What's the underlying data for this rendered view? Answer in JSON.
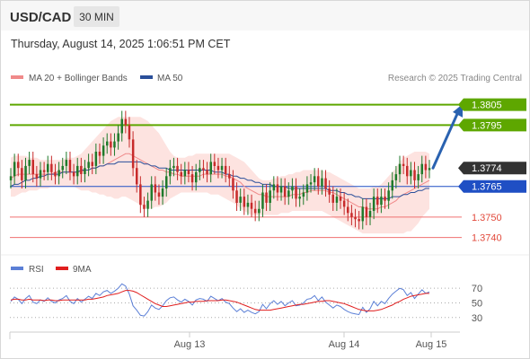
{
  "header": {
    "symbol": "USD/CAD",
    "timeframe": "30 MIN",
    "datetime": "Thursday, August 14, 2025 1:06:51 PM CET"
  },
  "legend": {
    "items": [
      {
        "label": "MA 20 + Bollinger Bands",
        "color": "#f08a8a"
      },
      {
        "label": "MA 50",
        "color": "#2a4f9a"
      }
    ],
    "credit": "Research © 2025 Trading Central"
  },
  "rsi_legend": {
    "items": [
      {
        "label": "RSI",
        "color": "#5b7fd6"
      },
      {
        "label": "9MA",
        "color": "#e01e1e"
      }
    ]
  },
  "colors": {
    "resistance": "#5ea700",
    "pivot": "#1f4fc4",
    "support": "#f07070",
    "candle_up": "#1f7a2b",
    "candle_down": "#c72b2b",
    "band_fill": "#fde3e0",
    "arrow": "#2a62b0",
    "last_price_bg": "#333333"
  },
  "chart_data": [
    {
      "type": "candlestick",
      "title": "USD/CAD 30 MIN",
      "x_ticks": [
        "Aug 13",
        "Aug 14",
        "Aug 15"
      ],
      "ylim": [
        1.3735,
        1.3811
      ],
      "levels": [
        {
          "value": 1.3805,
          "label": "1.3805",
          "kind": "resistance"
        },
        {
          "value": 1.3795,
          "label": "1.3795",
          "kind": "resistance"
        },
        {
          "value": 1.3765,
          "label": "1.3765",
          "kind": "pivot"
        },
        {
          "value": 1.375,
          "label": "1.3750",
          "kind": "support"
        },
        {
          "value": 1.374,
          "label": "1.3740",
          "kind": "support"
        }
      ],
      "last_price": {
        "value": 1.3774,
        "label": "1.3774"
      },
      "projection": {
        "from": 1.3774,
        "to": 1.3804
      },
      "close": [
        1.377,
        1.3777,
        1.3774,
        1.3768,
        1.3775,
        1.3778,
        1.3771,
        1.3769,
        1.3773,
        1.3772,
        1.3776,
        1.3772,
        1.377,
        1.3773,
        1.3775,
        1.3778,
        1.3772,
        1.377,
        1.3775,
        1.3771,
        1.3774,
        1.3777,
        1.3775,
        1.3782,
        1.378,
        1.3785,
        1.3787,
        1.3784,
        1.3787,
        1.3791,
        1.3798,
        1.3795,
        1.3788,
        1.3774,
        1.3766,
        1.3756,
        1.3754,
        1.3758,
        1.3766,
        1.3762,
        1.376,
        1.3764,
        1.377,
        1.3774,
        1.3775,
        1.3772,
        1.377,
        1.3773,
        1.3771,
        1.3767,
        1.3772,
        1.3774,
        1.3773,
        1.3771,
        1.3777,
        1.3775,
        1.3773,
        1.3775,
        1.3771,
        1.3769,
        1.3763,
        1.3757,
        1.376,
        1.3755,
        1.3757,
        1.3754,
        1.3752,
        1.3754,
        1.3762,
        1.3757,
        1.3763,
        1.3766,
        1.3762,
        1.3765,
        1.376,
        1.3763,
        1.3765,
        1.3759,
        1.376,
        1.3762,
        1.3766,
        1.3767,
        1.377,
        1.3765,
        1.3769,
        1.3764,
        1.3761,
        1.3757,
        1.376,
        1.3758,
        1.3755,
        1.3752,
        1.375,
        1.3749,
        1.3748,
        1.3755,
        1.375,
        1.3753,
        1.376,
        1.3756,
        1.376,
        1.3758,
        1.3763,
        1.3768,
        1.3771,
        1.3776,
        1.3775,
        1.377,
        1.3773,
        1.3768,
        1.3771,
        1.3776,
        1.3773,
        1.3774
      ],
      "ma20": [
        1.3769,
        1.377,
        1.3771,
        1.3771,
        1.3771,
        1.3771,
        1.3771,
        1.3771,
        1.3771,
        1.3771,
        1.3771,
        1.3771,
        1.3772,
        1.3772,
        1.3772,
        1.3772,
        1.3772,
        1.3772,
        1.3772,
        1.3772,
        1.3773,
        1.3773,
        1.3774,
        1.3774,
        1.3775,
        1.3775,
        1.3776,
        1.3777,
        1.3778,
        1.3779,
        1.378,
        1.3781,
        1.3781,
        1.378,
        1.3779,
        1.3778,
        1.3777,
        1.3776,
        1.3775,
        1.3774,
        1.3773,
        1.3773,
        1.3772,
        1.3772,
        1.3771,
        1.3771,
        1.377,
        1.377,
        1.377,
        1.377,
        1.377,
        1.377,
        1.3771,
        1.3771,
        1.3771,
        1.3771,
        1.3771,
        1.3771,
        1.377,
        1.377,
        1.3769,
        1.3768,
        1.3767,
        1.3765,
        1.3764,
        1.3763,
        1.3762,
        1.3761,
        1.3761,
        1.376,
        1.376,
        1.376,
        1.376,
        1.376,
        1.376,
        1.376,
        1.3761,
        1.3761,
        1.3761,
        1.3762,
        1.3762,
        1.3763,
        1.3763,
        1.3763,
        1.3763,
        1.3763,
        1.3762,
        1.3762,
        1.3761,
        1.376,
        1.3759,
        1.3758,
        1.3757,
        1.3756,
        1.3755,
        1.3755,
        1.3754,
        1.3754,
        1.3754,
        1.3754,
        1.3755,
        1.3755,
        1.3756,
        1.3757,
        1.3758,
        1.376,
        1.3761,
        1.3762,
        1.3763,
        1.3764,
        1.3765,
        1.3766,
        1.3767,
        1.3768
      ],
      "bb_upper": [
        1.3779,
        1.378,
        1.378,
        1.378,
        1.378,
        1.3779,
        1.3779,
        1.3779,
        1.3778,
        1.3778,
        1.3778,
        1.3778,
        1.3778,
        1.3778,
        1.3778,
        1.3779,
        1.3779,
        1.3779,
        1.378,
        1.3781,
        1.3783,
        1.3785,
        1.3787,
        1.3789,
        1.3791,
        1.3793,
        1.3795,
        1.3797,
        1.3798,
        1.3799,
        1.3799,
        1.3799,
        1.3799,
        1.3799,
        1.3799,
        1.3799,
        1.3798,
        1.3797,
        1.3795,
        1.3793,
        1.3791,
        1.3788,
        1.3785,
        1.3782,
        1.378,
        1.3779,
        1.3779,
        1.3779,
        1.378,
        1.378,
        1.3781,
        1.3781,
        1.3781,
        1.3781,
        1.3781,
        1.3781,
        1.3781,
        1.3781,
        1.3781,
        1.3781,
        1.378,
        1.3779,
        1.3778,
        1.3777,
        1.3775,
        1.3773,
        1.3771,
        1.3769,
        1.3768,
        1.3768,
        1.3768,
        1.3769,
        1.3769,
        1.377,
        1.377,
        1.3771,
        1.3771,
        1.3772,
        1.3772,
        1.3773,
        1.3773,
        1.3773,
        1.3773,
        1.3773,
        1.3773,
        1.3772,
        1.3772,
        1.3771,
        1.377,
        1.3769,
        1.3768,
        1.3767,
        1.3766,
        1.3765,
        1.3764,
        1.3764,
        1.3764,
        1.3764,
        1.3765,
        1.3765,
        1.3766,
        1.3768,
        1.377,
        1.3772,
        1.3774,
        1.3777,
        1.3779,
        1.378,
        1.3781,
        1.3782,
        1.3782,
        1.3782,
        1.3782,
        1.3781
      ],
      "bb_lower": [
        1.376,
        1.376,
        1.3761,
        1.3762,
        1.3762,
        1.3763,
        1.3763,
        1.3763,
        1.3764,
        1.3764,
        1.3764,
        1.3765,
        1.3765,
        1.3765,
        1.3765,
        1.3765,
        1.3765,
        1.3765,
        1.3764,
        1.3763,
        1.3763,
        1.3763,
        1.3762,
        1.3762,
        1.3761,
        1.3761,
        1.376,
        1.376,
        1.3759,
        1.3759,
        1.376,
        1.376,
        1.3759,
        1.3758,
        1.3757,
        1.3756,
        1.3755,
        1.3754,
        1.3754,
        1.3755,
        1.3755,
        1.3756,
        1.3757,
        1.3759,
        1.376,
        1.3761,
        1.3762,
        1.3762,
        1.3762,
        1.3762,
        1.3762,
        1.3762,
        1.3762,
        1.3762,
        1.3761,
        1.3761,
        1.3761,
        1.376,
        1.3759,
        1.3758,
        1.3757,
        1.3756,
        1.3754,
        1.3753,
        1.3752,
        1.3751,
        1.3751,
        1.3751,
        1.3751,
        1.3751,
        1.3751,
        1.3751,
        1.3751,
        1.3752,
        1.3752,
        1.3752,
        1.3753,
        1.3753,
        1.3753,
        1.3753,
        1.3753,
        1.3753,
        1.3753,
        1.3753,
        1.3753,
        1.3752,
        1.3751,
        1.375,
        1.3749,
        1.3748,
        1.3747,
        1.3746,
        1.3745,
        1.3744,
        1.3743,
        1.3742,
        1.3742,
        1.3742,
        1.3742,
        1.3742,
        1.3742,
        1.3742,
        1.3742,
        1.3742,
        1.3742,
        1.3742,
        1.3742,
        1.3743,
        1.3743,
        1.3745,
        1.3747,
        1.375,
        1.3752,
        1.3754
      ],
      "ma50": [
        1.3765,
        1.3766,
        1.3766,
        1.3767,
        1.3768,
        1.3768,
        1.3769,
        1.3769,
        1.377,
        1.377,
        1.3771,
        1.3771,
        1.3771,
        1.3771,
        1.3772,
        1.3772,
        1.3772,
        1.3772,
        1.3772,
        1.3773,
        1.3773,
        1.3773,
        1.3774,
        1.3774,
        1.3775,
        1.3775,
        1.3776,
        1.3776,
        1.3776,
        1.3777,
        1.3777,
        1.3777,
        1.3777,
        1.3777,
        1.3777,
        1.3777,
        1.3776,
        1.3776,
        1.3775,
        1.3775,
        1.3774,
        1.3774,
        1.3774,
        1.3773,
        1.3773,
        1.3773,
        1.3773,
        1.3773,
        1.3773,
        1.3773,
        1.3773,
        1.3773,
        1.3773,
        1.3773,
        1.3773,
        1.3772,
        1.3772,
        1.3772,
        1.3771,
        1.3771,
        1.377,
        1.377,
        1.3769,
        1.3769,
        1.3768,
        1.3768,
        1.3767,
        1.3767,
        1.3766,
        1.3766,
        1.3766,
        1.3765,
        1.3765,
        1.3765,
        1.3765,
        1.3764,
        1.3764,
        1.3764,
        1.3764,
        1.3764,
        1.3764,
        1.3764,
        1.3764,
        1.3764,
        1.3764,
        1.3764,
        1.3763,
        1.3763,
        1.3763,
        1.3762,
        1.3762,
        1.3761,
        1.3761,
        1.376,
        1.376,
        1.3759,
        1.3759,
        1.3759,
        1.3759,
        1.3759,
        1.3759,
        1.3759,
        1.3759,
        1.376,
        1.376,
        1.376,
        1.3761,
        1.3761,
        1.3762,
        1.3762,
        1.3763,
        1.3763,
        1.3764,
        1.3764
      ]
    },
    {
      "type": "line",
      "title": "RSI",
      "y_ticks": [
        70,
        50,
        30
      ],
      "ylim": [
        15,
        80
      ],
      "series": [
        {
          "name": "RSI",
          "values": [
            52,
            58,
            55,
            49,
            56,
            60,
            51,
            49,
            54,
            52,
            57,
            52,
            50,
            54,
            56,
            60,
            52,
            49,
            56,
            51,
            55,
            59,
            56,
            63,
            60,
            65,
            67,
            63,
            66,
            70,
            76,
            73,
            62,
            46,
            40,
            33,
            32,
            38,
            47,
            43,
            41,
            46,
            53,
            57,
            58,
            54,
            51,
            55,
            52,
            47,
            54,
            56,
            55,
            52,
            59,
            56,
            53,
            56,
            51,
            49,
            43,
            38,
            42,
            37,
            40,
            37,
            35,
            38,
            48,
            42,
            49,
            53,
            48,
            52,
            46,
            50,
            53,
            46,
            47,
            50,
            55,
            56,
            60,
            53,
            58,
            51,
            47,
            43,
            47,
            45,
            41,
            38,
            36,
            35,
            34,
            44,
            37,
            42,
            52,
            46,
            52,
            49,
            56,
            62,
            66,
            70,
            68,
            60,
            64,
            56,
            62,
            68,
            63,
            65
          ]
        },
        {
          "name": "9MA",
          "values": [
            54,
            55,
            55,
            54,
            54,
            55,
            54,
            54,
            54,
            53,
            54,
            54,
            53,
            53,
            54,
            54,
            54,
            54,
            54,
            54,
            54,
            55,
            55,
            56,
            57,
            58,
            60,
            61,
            62,
            63,
            65,
            67,
            67,
            66,
            64,
            61,
            58,
            55,
            52,
            49,
            47,
            45,
            45,
            46,
            47,
            48,
            49,
            50,
            51,
            51,
            52,
            52,
            52,
            53,
            53,
            53,
            53,
            54,
            54,
            53,
            52,
            51,
            49,
            47,
            45,
            43,
            41,
            40,
            40,
            40,
            40,
            41,
            42,
            43,
            44,
            45,
            46,
            47,
            48,
            48,
            49,
            50,
            51,
            52,
            52,
            53,
            53,
            52,
            51,
            50,
            49,
            47,
            45,
            43,
            41,
            40,
            39,
            39,
            39,
            40,
            41,
            43,
            45,
            47,
            50,
            52,
            55,
            57,
            59,
            60,
            61,
            62,
            63,
            63
          ]
        }
      ]
    }
  ]
}
